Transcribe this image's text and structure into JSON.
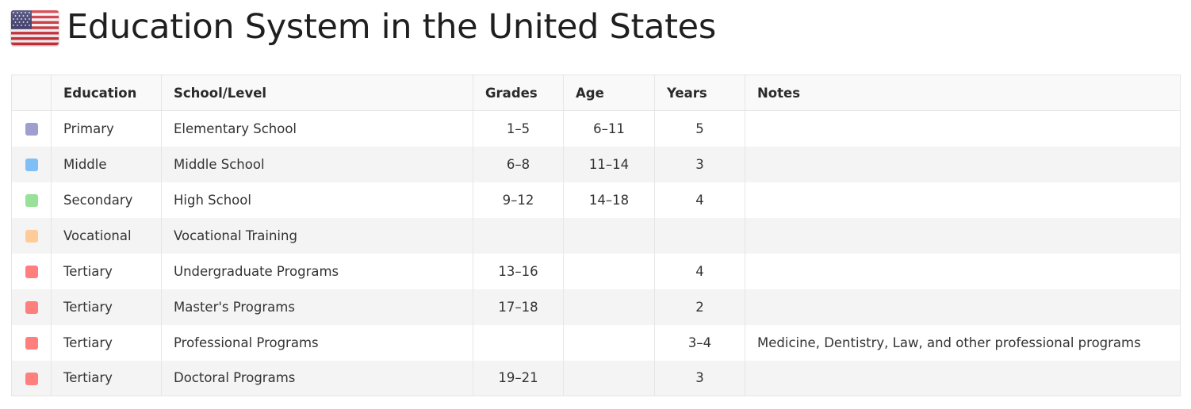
{
  "page": {
    "title": "Education System in the United States",
    "flag_icon": "us-flag-icon"
  },
  "table": {
    "columns": [
      "",
      "Education",
      "School/Level",
      "Grades",
      "Age",
      "Years",
      "Notes"
    ],
    "rows": [
      {
        "color": "#9e9ed1",
        "education": "Primary",
        "level": "Elementary School",
        "grades": "1–5",
        "age": "6–11",
        "years": "5",
        "notes": ""
      },
      {
        "color": "#7fbff5",
        "education": "Middle",
        "level": "Middle School",
        "grades": "6–8",
        "age": "11–14",
        "years": "3",
        "notes": ""
      },
      {
        "color": "#99e099",
        "education": "Secondary",
        "level": "High School",
        "grades": "9–12",
        "age": "14–18",
        "years": "4",
        "notes": ""
      },
      {
        "color": "#ffcc99",
        "education": "Vocational",
        "level": "Vocational Training",
        "grades": "",
        "age": "",
        "years": "",
        "notes": ""
      },
      {
        "color": "#ff7f7f",
        "education": "Tertiary",
        "level": "Undergraduate Programs",
        "grades": "13–16",
        "age": "",
        "years": "4",
        "notes": ""
      },
      {
        "color": "#ff7f7f",
        "education": "Tertiary",
        "level": "Master's Programs",
        "grades": "17–18",
        "age": "",
        "years": "2",
        "notes": ""
      },
      {
        "color": "#ff7f7f",
        "education": "Tertiary",
        "level": "Professional Programs",
        "grades": "",
        "age": "",
        "years": "3–4",
        "notes": "Medicine, Dentistry, Law, and other professional programs"
      },
      {
        "color": "#ff7f7f",
        "education": "Tertiary",
        "level": "Doctoral Programs",
        "grades": "19–21",
        "age": "",
        "years": "3",
        "notes": ""
      }
    ]
  }
}
